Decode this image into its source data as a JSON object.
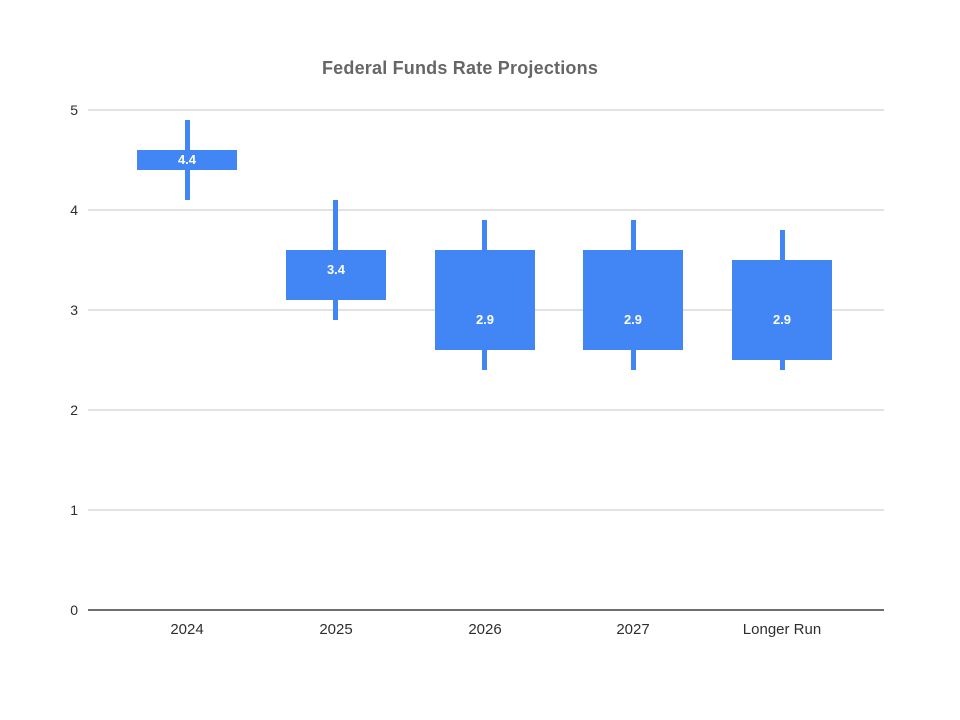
{
  "chart_data": {
    "type": "candlestick",
    "title": "Federal Funds Rate Projections",
    "categories": [
      "2024",
      "2025",
      "2026",
      "2027",
      "Longer Run"
    ],
    "points": [
      {
        "category": "2024",
        "whisker_low": 4.1,
        "box_low": 4.4,
        "median": 4.4,
        "box_high": 4.6,
        "whisker_high": 4.9,
        "label": "4.4"
      },
      {
        "category": "2025",
        "whisker_low": 2.9,
        "box_low": 3.1,
        "median": 3.4,
        "box_high": 3.6,
        "whisker_high": 4.1,
        "label": "3.4"
      },
      {
        "category": "2026",
        "whisker_low": 2.4,
        "box_low": 2.6,
        "median": 2.9,
        "box_high": 3.6,
        "whisker_high": 3.9,
        "label": "2.9"
      },
      {
        "category": "2027",
        "whisker_low": 2.4,
        "box_low": 2.6,
        "median": 2.9,
        "box_high": 3.6,
        "whisker_high": 3.9,
        "label": "2.9"
      },
      {
        "category": "Longer Run",
        "whisker_low": 2.4,
        "box_low": 2.5,
        "median": 2.9,
        "box_high": 3.5,
        "whisker_high": 3.8,
        "label": "2.9"
      }
    ],
    "ylim": [
      0,
      5
    ],
    "yticks": [
      0,
      1,
      2,
      3,
      4,
      5
    ],
    "grid": true,
    "legend_position": "none",
    "colors": {
      "bar": "#4285F4",
      "label_text": "#ffffff",
      "gridline": "#e2e2e2",
      "baseline": "#6f6f6f",
      "title": "#666666",
      "axis_text": "#2e2e2e"
    }
  }
}
